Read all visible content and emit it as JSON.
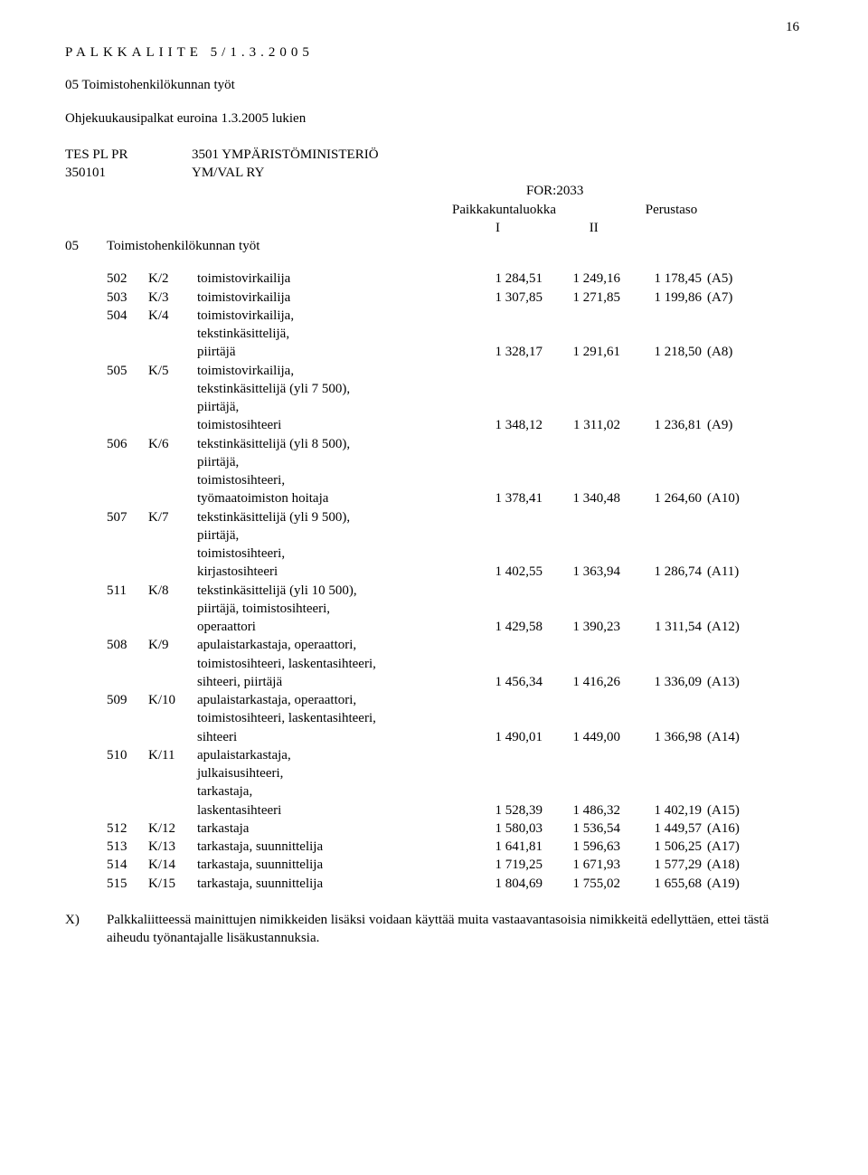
{
  "page_number": "16",
  "header": {
    "title_spaced": "PALKKALIITE 5/1.3.2005",
    "line1": "05  Toimistohenkilökunnan työt",
    "line2": "Ohjekuukausipalkat euroina 1.3.2005 lukien"
  },
  "org": {
    "tes_label": "TES  PL  PR",
    "tes_value": "3501 YMPÄRISTÖMINISTERIÖ",
    "unit_code": "350101",
    "unit_name": "YM/VAL RY",
    "for_code": "FOR:2033",
    "pkl": "Paikkakuntaluokka",
    "perustaso": "Perustaso",
    "roman_I": "I",
    "roman_II": "II",
    "section_code": "05",
    "section_name": "Toimistohenkilökunnan työt"
  },
  "rows": [
    {
      "code": "502",
      "k": "K/2",
      "desc": [
        "toimistovirkailija"
      ],
      "n1": "1 284,51",
      "n2": "1 249,16",
      "n3": "1 178,45",
      "a": "(A5)"
    },
    {
      "code": "503",
      "k": "K/3",
      "desc": [
        "toimistovirkailija"
      ],
      "n1": "1 307,85",
      "n2": "1 271,85",
      "n3": "1 199,86",
      "a": "(A7)"
    },
    {
      "code": "504",
      "k": "K/4",
      "desc": [
        "toimistovirkailija,",
        "tekstinkäsittelijä,",
        "piirtäjä"
      ],
      "n1": "1 328,17",
      "n2": "1 291,61",
      "n3": "1 218,50",
      "a": "(A8)"
    },
    {
      "code": "505",
      "k": "K/5",
      "desc": [
        "toimistovirkailija,",
        "tekstinkäsittelijä (yli 7 500),",
        "piirtäjä,",
        "toimistosihteeri"
      ],
      "n1": "1 348,12",
      "n2": "1 311,02",
      "n3": "1 236,81",
      "a": "(A9)"
    },
    {
      "code": "506",
      "k": "K/6",
      "desc": [
        "tekstinkäsittelijä (yli 8 500),",
        "piirtäjä,",
        "toimistosihteeri,",
        "työmaatoimiston hoitaja"
      ],
      "n1": "1 378,41",
      "n2": "1 340,48",
      "n3": "1 264,60",
      "a": "(A10)"
    },
    {
      "code": "507",
      "k": "K/7",
      "desc": [
        "tekstinkäsittelijä (yli 9 500),",
        "piirtäjä,",
        "toimistosihteeri,",
        "kirjastosihteeri"
      ],
      "n1": "1 402,55",
      "n2": "1 363,94",
      "n3": "1 286,74",
      "a": "(A11)"
    },
    {
      "code": "511",
      "k": "K/8",
      "desc": [
        "tekstinkäsittelijä (yli 10 500),",
        "piirtäjä, toimistosihteeri,",
        "operaattori"
      ],
      "n1": "1 429,58",
      "n2": "1 390,23",
      "n3": "1 311,54",
      "a": "(A12)"
    },
    {
      "code": "508",
      "k": "K/9",
      "desc": [
        "apulaistarkastaja, operaattori,",
        "toimistosihteeri, laskentasihteeri,",
        "sihteeri, piirtäjä"
      ],
      "n1": "1 456,34",
      "n2": "1 416,26",
      "n3": "1 336,09",
      "a": "(A13)"
    },
    {
      "code": "509",
      "k": "K/10",
      "desc": [
        "apulaistarkastaja, operaattori,",
        "toimistosihteeri, laskentasihteeri,",
        "sihteeri"
      ],
      "n1": "1 490,01",
      "n2": "1 449,00",
      "n3": "1 366,98",
      "a": "(A14)"
    },
    {
      "code": "510",
      "k": "K/11",
      "desc": [
        "apulaistarkastaja,",
        "julkaisusihteeri,",
        "tarkastaja,",
        "laskentasihteeri"
      ],
      "n1": "1 528,39",
      "n2": "1 486,32",
      "n3": "1 402,19",
      "a": "(A15)"
    },
    {
      "code": "512",
      "k": "K/12",
      "desc": [
        "tarkastaja"
      ],
      "n1": "1 580,03",
      "n2": "1 536,54",
      "n3": "1 449,57",
      "a": "(A16)"
    },
    {
      "code": "513",
      "k": "K/13",
      "desc": [
        "tarkastaja, suunnittelija"
      ],
      "n1": "1 641,81",
      "n2": "1 596,63",
      "n3": "1 506,25",
      "a": "(A17)"
    },
    {
      "code": "514",
      "k": "K/14",
      "desc": [
        "tarkastaja, suunnittelija"
      ],
      "n1": "1 719,25",
      "n2": "1 671,93",
      "n3": "1 577,29",
      "a": "(A18)"
    },
    {
      "code": "515",
      "k": "K/15",
      "desc": [
        "tarkastaja, suunnittelija"
      ],
      "n1": "1 804,69",
      "n2": "1 755,02",
      "n3": "1 655,68",
      "a": "(A19)"
    }
  ],
  "footnote": {
    "marker": "X)",
    "text": "Palkkaliitteessä mainittujen nimikkeiden lisäksi voidaan käyttää muita vastaavantasoisia nimikkeitä edellyttäen, ettei tästä aiheudu työnantajalle lisäkustannuksia."
  }
}
